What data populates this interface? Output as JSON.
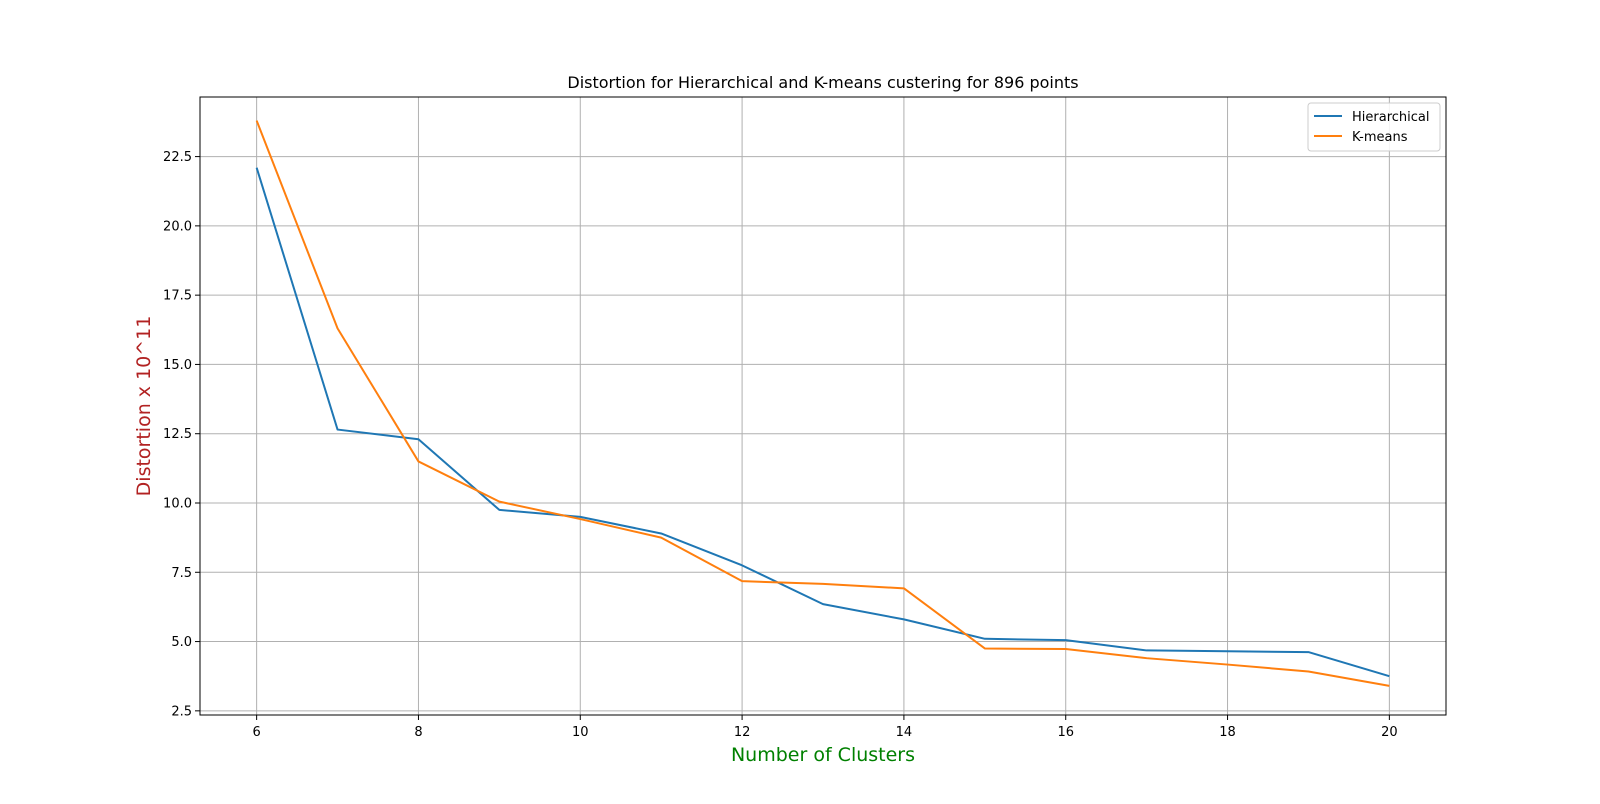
{
  "colors": {
    "background": "#ffffff",
    "grid": "#b0b0b0",
    "axis": "#000000",
    "xlabel": "#008000",
    "ylabel": "#b22222",
    "legend_border": "#cccccc"
  },
  "chart_data": {
    "type": "line",
    "title": "Distortion for Hierarchical and K-means custering for 896 points",
    "xlabel": "Number of Clusters",
    "ylabel": "Distortion x 10^11",
    "x": [
      6,
      7,
      8,
      9,
      10,
      11,
      12,
      13,
      14,
      15,
      16,
      17,
      18,
      19,
      20
    ],
    "xlim": [
      5.3,
      20.7
    ],
    "ylim": [
      2.35,
      24.65
    ],
    "xticks": [
      6,
      8,
      10,
      12,
      14,
      16,
      18,
      20
    ],
    "xtick_labels": [
      "6",
      "8",
      "10",
      "12",
      "14",
      "16",
      "18",
      "20"
    ],
    "yticks": [
      2.5,
      5.0,
      7.5,
      10.0,
      12.5,
      15.0,
      17.5,
      20.0,
      22.5
    ],
    "ytick_labels": [
      "2.5",
      "5.0",
      "7.5",
      "10.0",
      "12.5",
      "15.0",
      "17.5",
      "20.0",
      "22.5"
    ],
    "grid": true,
    "legend_position": "top-right",
    "series": [
      {
        "name": "Hierarchical",
        "color": "#1f77b4",
        "values": [
          22.1,
          12.65,
          12.3,
          9.75,
          9.5,
          8.9,
          7.75,
          6.35,
          5.8,
          5.1,
          5.05,
          4.68,
          4.65,
          4.62,
          3.75
        ]
      },
      {
        "name": "K-means",
        "color": "#ff7f0e",
        "values": [
          23.8,
          16.3,
          11.5,
          10.05,
          9.42,
          8.75,
          7.18,
          7.08,
          6.92,
          4.75,
          4.73,
          4.4,
          4.17,
          3.92,
          3.4
        ]
      }
    ]
  }
}
